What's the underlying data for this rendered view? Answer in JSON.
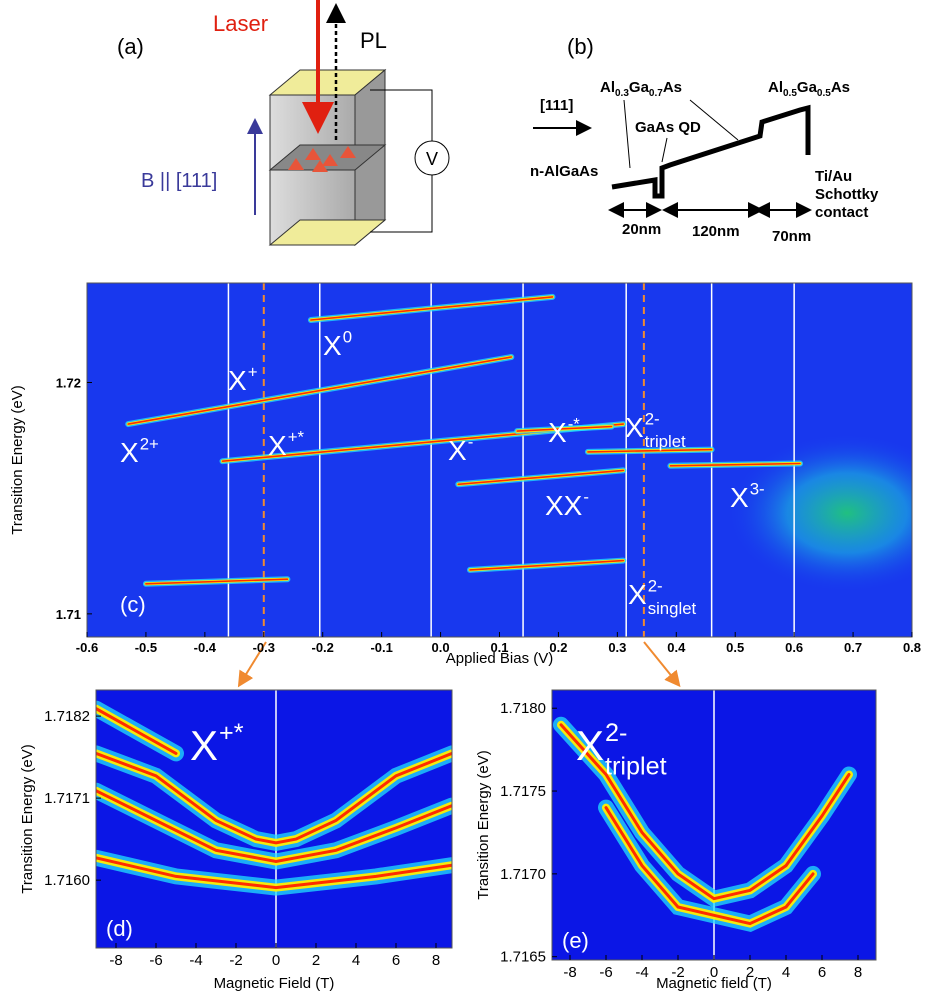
{
  "panel_a": {
    "label": "(a)",
    "laser": "Laser",
    "pl": "PL",
    "field": "B || [111]",
    "meter": "V"
  },
  "panel_b": {
    "label": "(b)",
    "barrier1": [
      "Al",
      "0.3",
      "Ga",
      "0.7",
      "As"
    ],
    "barrier2": [
      "Al",
      "0.5",
      "Ga",
      "0.5",
      "As"
    ],
    "direction": "[111]",
    "dot": "GaAs QD",
    "substrate": "n-AlGaAs",
    "contact": [
      "Ti/Au",
      "Schottky",
      "contact"
    ],
    "widths": [
      "20nm",
      "120nm",
      "70nm"
    ]
  },
  "chart_data": [
    {
      "type": "spectral_map",
      "panel": "(c)",
      "xlabel": "Applied Bias (V)",
      "ylabel": "Transition Energy (eV)",
      "background": "#1838ee",
      "colormap": [
        "#22e0ff",
        "#ffee00",
        "#ff2200"
      ],
      "xlim": [
        -0.6,
        0.8
      ],
      "ylim": [
        1.709,
        1.7243
      ],
      "xticks": [
        -0.6,
        -0.5,
        -0.4,
        -0.3,
        -0.2,
        -0.1,
        {
          "value": 0,
          "label": "0.0"
        },
        0.1,
        0.2,
        0.3,
        0.4,
        0.5,
        0.6,
        0.7,
        0.8
      ],
      "yticks": [
        1.71,
        1.72
      ],
      "vlines": [
        -0.36,
        -0.205,
        -0.016,
        0.14,
        0.315,
        0.46,
        0.6
      ],
      "dashed_vlines": [
        -0.3,
        0.345
      ],
      "series": [
        {
          "x": [
            -0.22,
            0.19
          ],
          "values": [
            1.7227,
            1.7237
          ]
        },
        {
          "x": [
            -0.53,
            0.12
          ],
          "values": [
            1.7182,
            1.7211
          ]
        },
        {
          "x": [
            -0.37,
            0.31
          ],
          "values": [
            1.7166,
            1.7182
          ]
        },
        {
          "x": [
            0.13,
            0.29
          ],
          "values": [
            1.7179,
            1.7181
          ]
        },
        {
          "x": [
            0.25,
            0.46
          ],
          "values": [
            1.717,
            1.7171
          ]
        },
        {
          "x": [
            0.39,
            0.61
          ],
          "values": [
            1.7164,
            1.7165
          ]
        },
        {
          "x": [
            0.03,
            0.31
          ],
          "values": [
            1.7156,
            1.7162
          ]
        },
        {
          "x": [
            0.05,
            0.31
          ],
          "values": [
            1.7119,
            1.7123
          ]
        },
        {
          "x": [
            -0.5,
            -0.26
          ],
          "values": [
            1.7113,
            1.7115
          ]
        }
      ],
      "annotations": [
        {
          "text": "X",
          "sup": "0"
        },
        {
          "text": "X",
          "sup": "+"
        },
        {
          "text": "X",
          "sup": "2+"
        },
        {
          "text": "X",
          "sup": "+*"
        },
        {
          "text": "X",
          "sup": "-"
        },
        {
          "text": "X",
          "sup": "-*"
        },
        {
          "text": "X",
          "sup": "2-",
          "sub": "triplet"
        },
        {
          "text": "XX",
          "sup": "-"
        },
        {
          "text": "X",
          "sup": "3-"
        },
        {
          "text": "X",
          "sup": "2-",
          "sub": "singlet"
        }
      ]
    },
    {
      "type": "spectral_map",
      "panel": "(d)",
      "xlabel": "Magnetic Field (T)",
      "ylabel": "Transition Energy (eV)",
      "background": "#0b16e6",
      "colormap": [
        "#22e0ff",
        "#ffee00",
        "#ff2200"
      ],
      "xlim": [
        -9,
        8.8
      ],
      "ylim": [
        1.71509,
        1.71855
      ],
      "xticks": [
        -8,
        -6,
        -4,
        -2,
        0,
        2,
        4,
        6,
        8
      ],
      "yticks": [
        1.7182,
        1.7171,
        {
          "value": 1.716,
          "label": "1.7160"
        }
      ],
      "vlines": [
        0
      ],
      "series": [
        {
          "x": [
            -9,
            -6,
            -3,
            -1,
            0,
            1,
            3,
            6,
            8.8
          ],
          "values": [
            1.7177,
            1.7174,
            1.7168,
            1.71655,
            1.7165,
            1.71655,
            1.7168,
            1.7174,
            1.7177
          ]
        },
        {
          "x": [
            -9,
            -6,
            -3,
            0,
            3,
            6,
            8.8
          ],
          "values": [
            1.7172,
            1.7168,
            1.7164,
            1.71625,
            1.7164,
            1.7167,
            1.717
          ]
        },
        {
          "x": [
            -9,
            -5,
            0,
            5,
            8.8
          ],
          "values": [
            1.7163,
            1.71605,
            1.7159,
            1.71605,
            1.7162
          ]
        },
        {
          "x": [
            -9,
            -7,
            -5
          ],
          "values": [
            1.7183,
            1.718,
            1.7177
          ]
        }
      ],
      "annotations": [
        {
          "text": "X",
          "sup": "+*"
        }
      ]
    },
    {
      "type": "spectral_map",
      "panel": "(e)",
      "xlabel": "Magnetic field (T)",
      "ylabel": "Transition Energy (eV)",
      "background": "#0b16e6",
      "colormap": [
        "#22e0ff",
        "#ffee00",
        "#ff2200"
      ],
      "xlim": [
        -9,
        9
      ],
      "ylim": [
        1.71648,
        1.71811
      ],
      "xticks": [
        -8,
        -6,
        -4,
        -2,
        0,
        2,
        4,
        6,
        8
      ],
      "yticks": [
        {
          "value": 1.718,
          "label": "1.7180"
        },
        1.7175,
        {
          "value": 1.717,
          "label": "1.7170"
        },
        1.7165
      ],
      "vlines": [
        0
      ],
      "series": [
        {
          "x": [
            -8.5,
            -6,
            -4,
            -2,
            0,
            2,
            4,
            6,
            7.5
          ],
          "values": [
            1.7179,
            1.7176,
            1.71725,
            1.717,
            1.71685,
            1.7169,
            1.71705,
            1.71735,
            1.7176
          ]
        },
        {
          "x": [
            -6,
            -4,
            -2,
            0,
            2,
            4,
            5.5
          ],
          "values": [
            1.7174,
            1.71705,
            1.7168,
            1.71675,
            1.7167,
            1.7168,
            1.717
          ]
        }
      ],
      "annotations": [
        {
          "text": "X",
          "sup": "2-",
          "sub": "triplet"
        }
      ]
    }
  ]
}
